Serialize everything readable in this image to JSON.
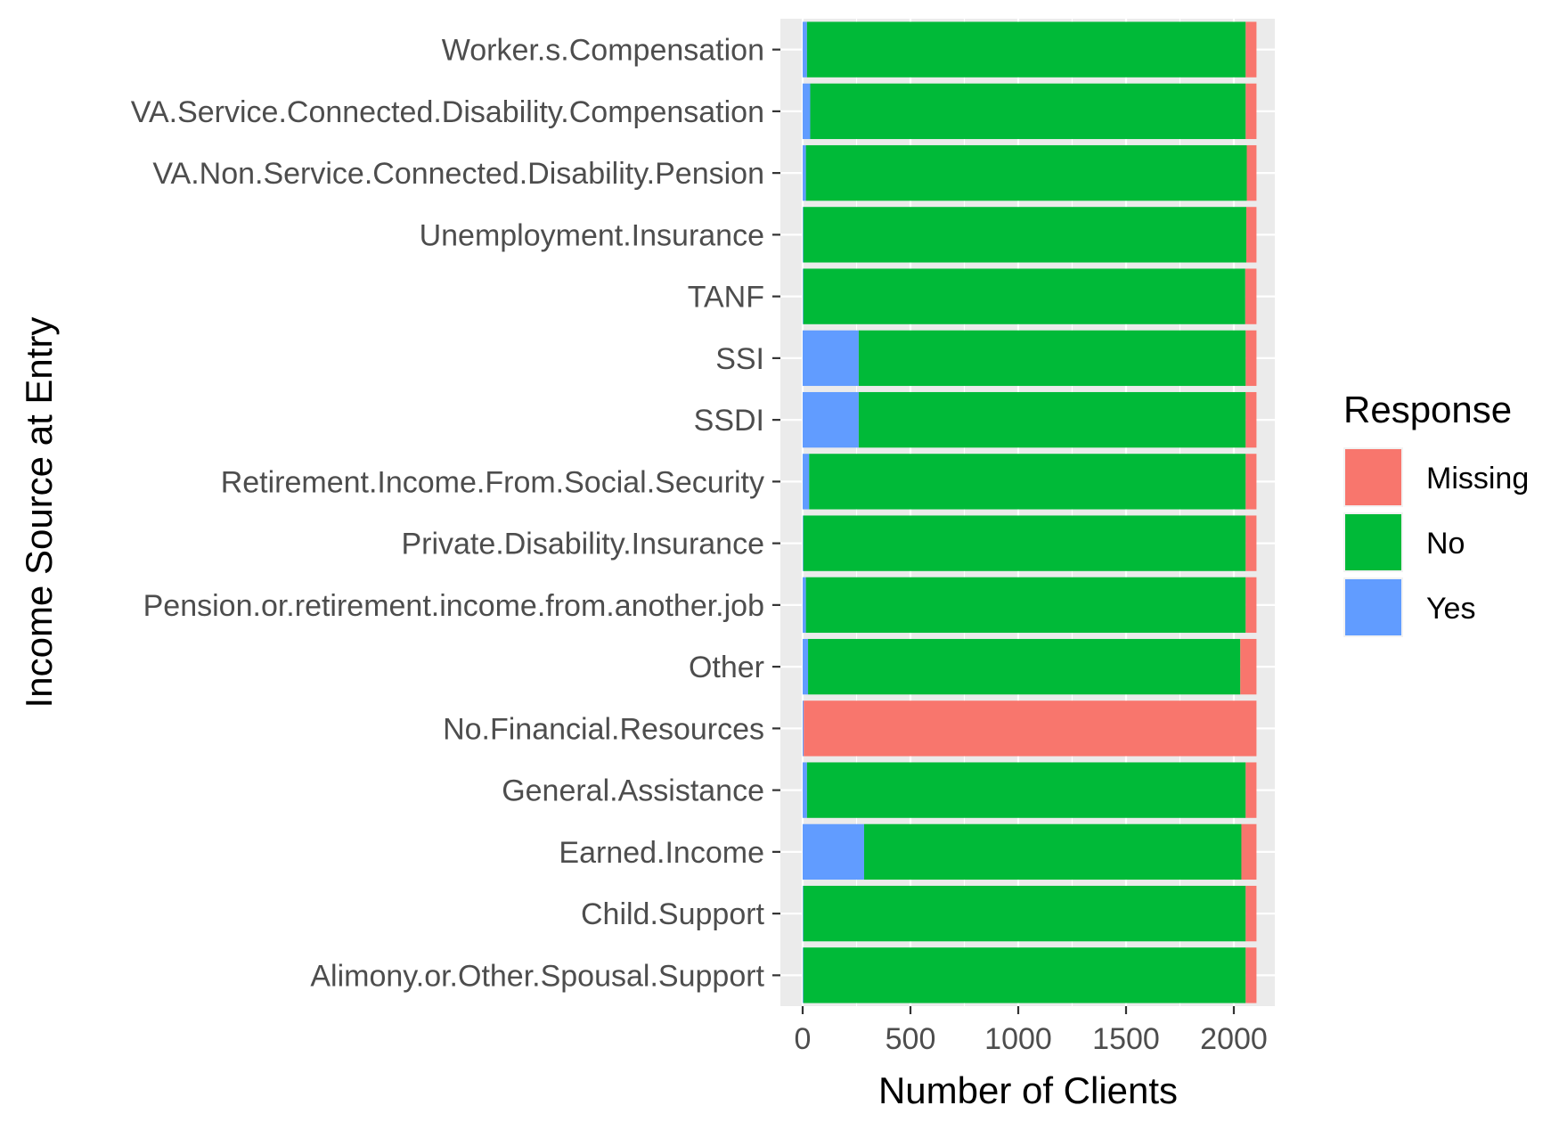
{
  "chart_data": {
    "type": "bar",
    "orientation": "horizontal",
    "stacked": true,
    "xlabel": "Number of Clients",
    "ylabel": "Income Source at Entry",
    "xlim": [
      -100,
      2200
    ],
    "xticks": [
      0,
      500,
      1000,
      1500,
      2000
    ],
    "xtick_labels": [
      "0",
      "500",
      "1000",
      "1500",
      "2000"
    ],
    "grid": true,
    "legend": {
      "title": "Response",
      "position": "right"
    },
    "categories": [
      "Worker.s.Compensation",
      "VA.Service.Connected.Disability.Compensation",
      "VA.Non.Service.Connected.Disability.Pension",
      "Unemployment.Insurance",
      "TANF",
      "SSI",
      "SSDI",
      "Retirement.Income.From.Social.Security",
      "Private.Disability.Insurance",
      "Pension.or.retirement.income.from.another.job",
      "Other",
      "No.Financial.Resources",
      "General.Assistance",
      "Earned.Income",
      "Child.Support",
      "Alimony.or.Other.Spousal.Support"
    ],
    "series": [
      {
        "name": "Yes",
        "color": "#619CFF",
        "values": [
          20,
          35,
          15,
          3,
          3,
          260,
          260,
          30,
          3,
          15,
          25,
          5,
          20,
          285,
          3,
          3
        ]
      },
      {
        "name": "No",
        "color": "#00BA38",
        "values": [
          2035,
          2020,
          2045,
          2055,
          2050,
          1795,
          1795,
          2025,
          2052,
          2040,
          2005,
          0,
          2035,
          1750,
          2052,
          2052
        ]
      },
      {
        "name": "Missing",
        "color": "#F8766D",
        "values": [
          50,
          50,
          45,
          47,
          52,
          50,
          50,
          50,
          50,
          50,
          75,
          2100,
          50,
          70,
          50,
          50
        ]
      }
    ]
  }
}
